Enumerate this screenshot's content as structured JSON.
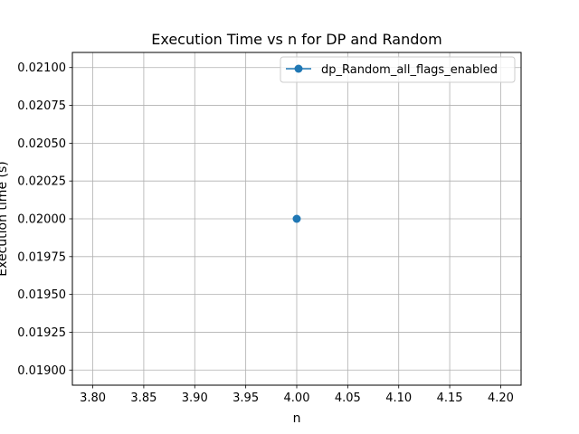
{
  "chart_data": {
    "type": "line",
    "title": "Execution Time vs n for DP and Random",
    "xlabel": "n",
    "ylabel": "Execution time (s)",
    "xlim": [
      3.78,
      4.22
    ],
    "ylim": [
      0.0189,
      0.0211
    ],
    "x_ticks": [
      "3.80",
      "3.85",
      "3.90",
      "3.95",
      "4.00",
      "4.05",
      "4.10",
      "4.15",
      "4.20"
    ],
    "y_ticks": [
      "0.01900",
      "0.01925",
      "0.01950",
      "0.01975",
      "0.02000",
      "0.02025",
      "0.02050",
      "0.02075",
      "0.02100"
    ],
    "grid": true,
    "legend_position": "top-right",
    "series": [
      {
        "name": "dp_Random_all_flags_enabled",
        "color": "#1f77b4",
        "marker": "circle",
        "x": [
          4.0
        ],
        "y": [
          0.02
        ]
      }
    ]
  }
}
